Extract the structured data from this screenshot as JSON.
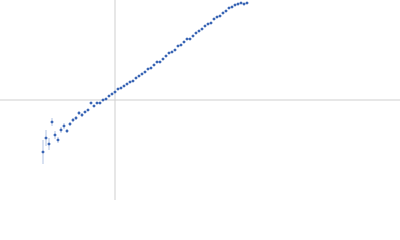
{
  "chart_data": {
    "type": "scatter",
    "xlim": [
      -115,
      285
    ],
    "ylim": [
      -100,
      100
    ],
    "origin_lines": true,
    "color": "#3a66b5",
    "x": [
      -72,
      -69,
      -66,
      -63,
      -60,
      -57,
      -54,
      -51,
      -48,
      -45,
      -42,
      -39,
      -36,
      -33,
      -30,
      -27,
      -24,
      -21,
      -18,
      -15,
      -12,
      -9,
      -6,
      -3,
      0,
      3,
      6,
      9,
      12,
      15,
      18,
      21,
      24,
      27,
      30,
      33,
      36,
      39,
      42,
      45,
      48,
      51,
      54,
      57,
      60,
      63,
      66,
      69,
      72,
      75,
      78,
      81,
      84,
      87,
      90,
      93,
      96,
      99,
      102,
      105,
      108,
      111,
      114,
      117,
      120,
      123,
      126,
      129,
      132
    ],
    "values": [
      -52,
      -38,
      -44,
      -22,
      -35,
      -40,
      -30,
      -26,
      -31,
      -24,
      -20,
      -18,
      -13,
      -15,
      -12,
      -10,
      -3,
      -6,
      -3,
      -3,
      0,
      1,
      4,
      6,
      8,
      11,
      12,
      14,
      16,
      18,
      19,
      22,
      24,
      26,
      28,
      31,
      32,
      35,
      38,
      38,
      41,
      44,
      47,
      48,
      50,
      54,
      55,
      58,
      61,
      61,
      64,
      67,
      69,
      71,
      74,
      76,
      77,
      81,
      83,
      84,
      87,
      89,
      92,
      93,
      95,
      96,
      97,
      96,
      97
    ],
    "errors": [
      12,
      8,
      6,
      4,
      4,
      3,
      3,
      3,
      2,
      2,
      2,
      2,
      2,
      2,
      1,
      1,
      1,
      1,
      1,
      1,
      1,
      1,
      1,
      1,
      1,
      1,
      1,
      1,
      1,
      1,
      1,
      1,
      1,
      1,
      1,
      1,
      1,
      1,
      1,
      1,
      1,
      1,
      1,
      1,
      1,
      1,
      1,
      1,
      1,
      1,
      1,
      1,
      1,
      1,
      1,
      1,
      1,
      1,
      1,
      1,
      1,
      1,
      1,
      1,
      1,
      1,
      1,
      1,
      1
    ]
  }
}
